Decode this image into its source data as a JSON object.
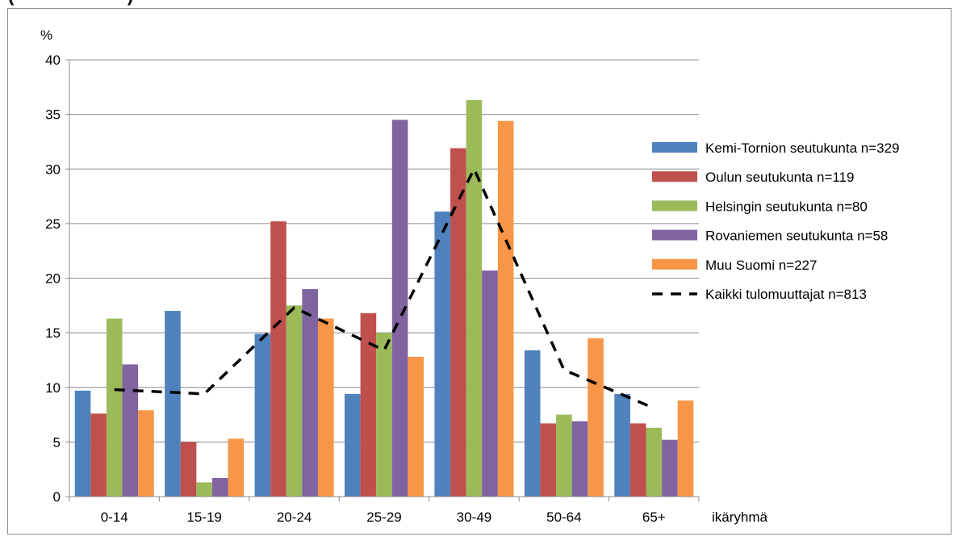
{
  "chart_data": {
    "type": "bar",
    "title": "",
    "ylabel": "%",
    "xlabel": "ikäryhmä",
    "ylim": [
      0,
      40
    ],
    "yticks": [
      0,
      5,
      10,
      15,
      20,
      25,
      30,
      35,
      40
    ],
    "grid": true,
    "legend_position": "right",
    "categories": [
      "0-14",
      "15-19",
      "20-24",
      "25-29",
      "30-49",
      "50-64",
      "65+"
    ],
    "series": [
      {
        "name": "Kemi-Tornion seutukunta n=329",
        "color": "#4F81BD",
        "values": [
          9.7,
          17.0,
          14.9,
          9.4,
          26.1,
          13.4,
          9.4
        ]
      },
      {
        "name": "Oulun seutukunta n=119",
        "color": "#C0504D",
        "values": [
          7.6,
          5.0,
          25.2,
          16.8,
          31.9,
          6.7,
          6.7
        ]
      },
      {
        "name": "Helsingin seutukunta n=80",
        "color": "#9BBB59",
        "values": [
          16.3,
          1.3,
          17.5,
          15.0,
          36.3,
          7.5,
          6.3
        ]
      },
      {
        "name": "Rovaniemen seutukunta n=58",
        "color": "#8064A2",
        "values": [
          12.1,
          1.7,
          19.0,
          34.5,
          20.7,
          6.9,
          5.2
        ]
      },
      {
        "name": "Muu Suomi n=227",
        "color": "#F79646",
        "values": [
          7.9,
          5.3,
          16.3,
          12.8,
          34.4,
          14.5,
          8.8
        ]
      }
    ],
    "line_series": {
      "name": "Kaikki tulomuuttajat n=813",
      "color": "#000000",
      "style": "dashed",
      "values": [
        9.8,
        9.4,
        17.3,
        13.4,
        30.0,
        11.6,
        8.1
      ]
    }
  },
  "partial_title": "(                       )"
}
